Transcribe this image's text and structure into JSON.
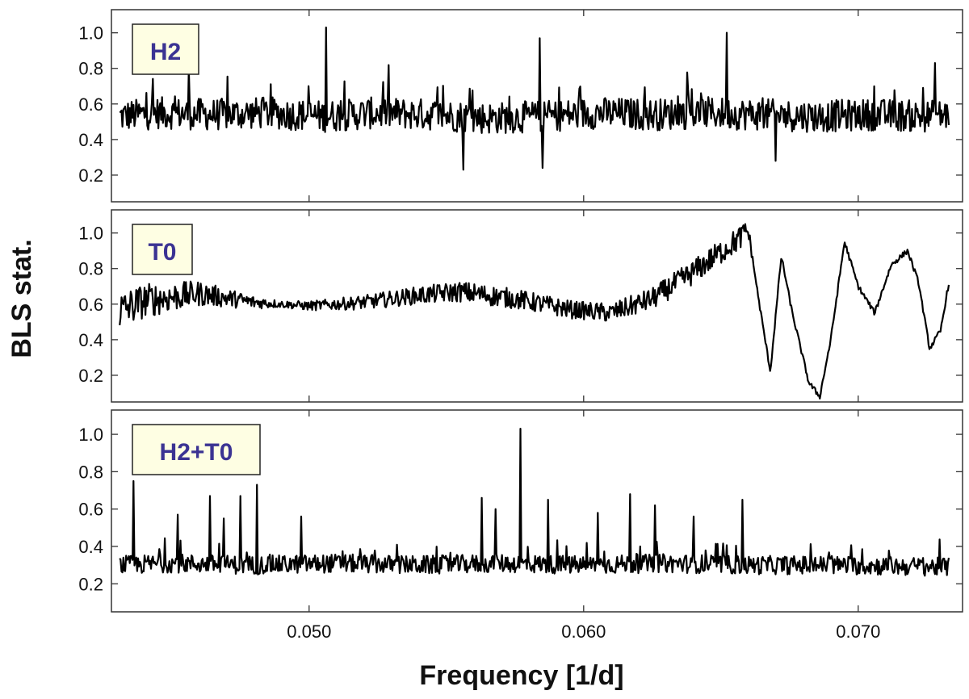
{
  "chart_data": {
    "type": "line",
    "xlabel": "Frequency [1/d]",
    "ylabel": "BLS stat.",
    "xlim": [
      0.0428,
      0.0738
    ],
    "xticks": [
      "0.050",
      "0.060",
      "0.070"
    ],
    "xtick_values": [
      0.05,
      0.06,
      0.07
    ],
    "grid": false,
    "line_color": "#000000",
    "label_box_fill": "#fefee3",
    "label_text_color": "#3b3393",
    "panels": [
      {
        "name": "H2",
        "ylim": [
          0.05,
          1.13
        ],
        "yticks": [
          "0.2",
          "0.4",
          "0.6",
          "0.8",
          "1.0"
        ],
        "ytick_values": [
          0.2,
          0.4,
          0.6,
          0.8,
          1.0
        ],
        "anchors": {
          "x": [
            0.0431,
            0.0445,
            0.0465,
            0.0485,
            0.0505,
            0.0525,
            0.0545,
            0.0565,
            0.0585,
            0.0605,
            0.0625,
            0.0645,
            0.0665,
            0.0685,
            0.0705,
            0.0725,
            0.0733
          ],
          "y": [
            0.53,
            0.55,
            0.54,
            0.55,
            0.53,
            0.55,
            0.54,
            0.52,
            0.53,
            0.55,
            0.54,
            0.55,
            0.54,
            0.53,
            0.54,
            0.53,
            0.54
          ]
        },
        "noise_amplitude": 0.09,
        "peaks": [
          {
            "x": 0.0506,
            "y": 1.03
          },
          {
            "x": 0.0584,
            "y": 0.97
          },
          {
            "x": 0.0652,
            "y": 1.0
          },
          {
            "x": 0.0556,
            "y": 0.23
          },
          {
            "x": 0.0585,
            "y": 0.24
          },
          {
            "x": 0.067,
            "y": 0.28
          },
          {
            "x": 0.0456,
            "y": 0.8
          },
          {
            "x": 0.0728,
            "y": 0.83
          }
        ]
      },
      {
        "name": "T0",
        "ylim": [
          0.05,
          1.13
        ],
        "yticks": [
          "0.2",
          "0.4",
          "0.6",
          "0.8",
          "1.0"
        ],
        "ytick_values": [
          0.2,
          0.4,
          0.6,
          0.8,
          1.0
        ],
        "anchors": {
          "x": [
            0.0431,
            0.044,
            0.046,
            0.048,
            0.05,
            0.052,
            0.054,
            0.0555,
            0.0575,
            0.0595,
            0.061,
            0.0625,
            0.064,
            0.0655,
            0.066,
            0.0664,
            0.0668,
            0.0672,
            0.0676,
            0.0682,
            0.0686,
            0.069,
            0.0695,
            0.07,
            0.0706,
            0.0712,
            0.0718,
            0.0722,
            0.0726,
            0.073,
            0.0733
          ],
          "y": [
            0.56,
            0.62,
            0.66,
            0.61,
            0.59,
            0.61,
            0.65,
            0.67,
            0.63,
            0.57,
            0.55,
            0.63,
            0.78,
            0.95,
            1.01,
            0.6,
            0.22,
            0.87,
            0.55,
            0.16,
            0.08,
            0.4,
            0.95,
            0.7,
            0.55,
            0.82,
            0.9,
            0.72,
            0.35,
            0.45,
            0.72
          ]
        },
        "noise_amplitude": [
          {
            "x": 0.0431,
            "a": 0.11
          },
          {
            "x": 0.046,
            "a": 0.07
          },
          {
            "x": 0.049,
            "a": 0.02
          },
          {
            "x": 0.052,
            "a": 0.04
          },
          {
            "x": 0.056,
            "a": 0.06
          },
          {
            "x": 0.06,
            "a": 0.05
          },
          {
            "x": 0.064,
            "a": 0.07
          },
          {
            "x": 0.0658,
            "a": 0.07
          },
          {
            "x": 0.0662,
            "a": 0.015
          },
          {
            "x": 0.0733,
            "a": 0.015
          }
        ],
        "peaks": [
          {
            "x": 0.0659,
            "y": 1.05
          }
        ]
      },
      {
        "name": "H2+T0",
        "ylim": [
          0.05,
          1.13
        ],
        "yticks": [
          "0.2",
          "0.4",
          "0.6",
          "0.8",
          "1.0"
        ],
        "ytick_values": [
          0.2,
          0.4,
          0.6,
          0.8,
          1.0
        ],
        "anchors": {
          "x": [
            0.0431,
            0.045,
            0.048,
            0.051,
            0.054,
            0.057,
            0.06,
            0.063,
            0.066,
            0.069,
            0.0733
          ],
          "y": [
            0.3,
            0.31,
            0.3,
            0.31,
            0.3,
            0.31,
            0.3,
            0.31,
            0.3,
            0.3,
            0.29
          ]
        },
        "noise_amplitude": 0.05,
        "peaks": [
          {
            "x": 0.0577,
            "y": 1.03
          },
          {
            "x": 0.0436,
            "y": 0.75
          },
          {
            "x": 0.0481,
            "y": 0.73
          },
          {
            "x": 0.0464,
            "y": 0.67
          },
          {
            "x": 0.0475,
            "y": 0.67
          },
          {
            "x": 0.0617,
            "y": 0.68
          },
          {
            "x": 0.0563,
            "y": 0.66
          },
          {
            "x": 0.0587,
            "y": 0.65
          },
          {
            "x": 0.0658,
            "y": 0.65
          },
          {
            "x": 0.0626,
            "y": 0.62
          },
          {
            "x": 0.0568,
            "y": 0.6
          },
          {
            "x": 0.0452,
            "y": 0.57
          },
          {
            "x": 0.0469,
            "y": 0.55
          },
          {
            "x": 0.0497,
            "y": 0.56
          },
          {
            "x": 0.0605,
            "y": 0.58
          },
          {
            "x": 0.064,
            "y": 0.56
          }
        ]
      }
    ]
  }
}
